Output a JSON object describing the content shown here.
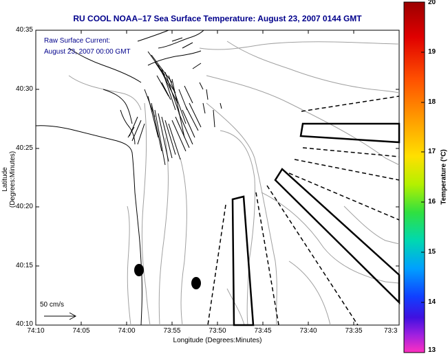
{
  "map": {
    "title": "RU COOL  NOAA–17  Sea Surface Temperature:  August 23, 2007 0144 GMT",
    "xlabel": "Longitude (Degrees:Minutes)",
    "ylabel": "Latitude (Degrees:Minutes)",
    "x_ticks": [
      "74:10",
      "74:05",
      "74:00",
      "73:55",
      "73:50",
      "73:45",
      "73:40",
      "73:35",
      "73:3"
    ],
    "y_ticks": [
      "40:35",
      "40:30",
      "40:25",
      "40:20",
      "40:15",
      "40:10"
    ],
    "legend": {
      "line1": "Raw Surface Current:",
      "line2": "August 23, 2007 00:00 GMT"
    },
    "scale": {
      "label": "50 cm/s"
    }
  },
  "colorbar": {
    "label": "Temperature (°C)",
    "ticks": [
      "20",
      "19",
      "18",
      "17",
      "16",
      "15",
      "14",
      "13"
    ],
    "min": 13,
    "max": 20
  },
  "colors": {
    "title_text": "#00008b",
    "legend_text": "#00008b",
    "contour": "#a0a0a0",
    "coast": "#000000"
  }
}
